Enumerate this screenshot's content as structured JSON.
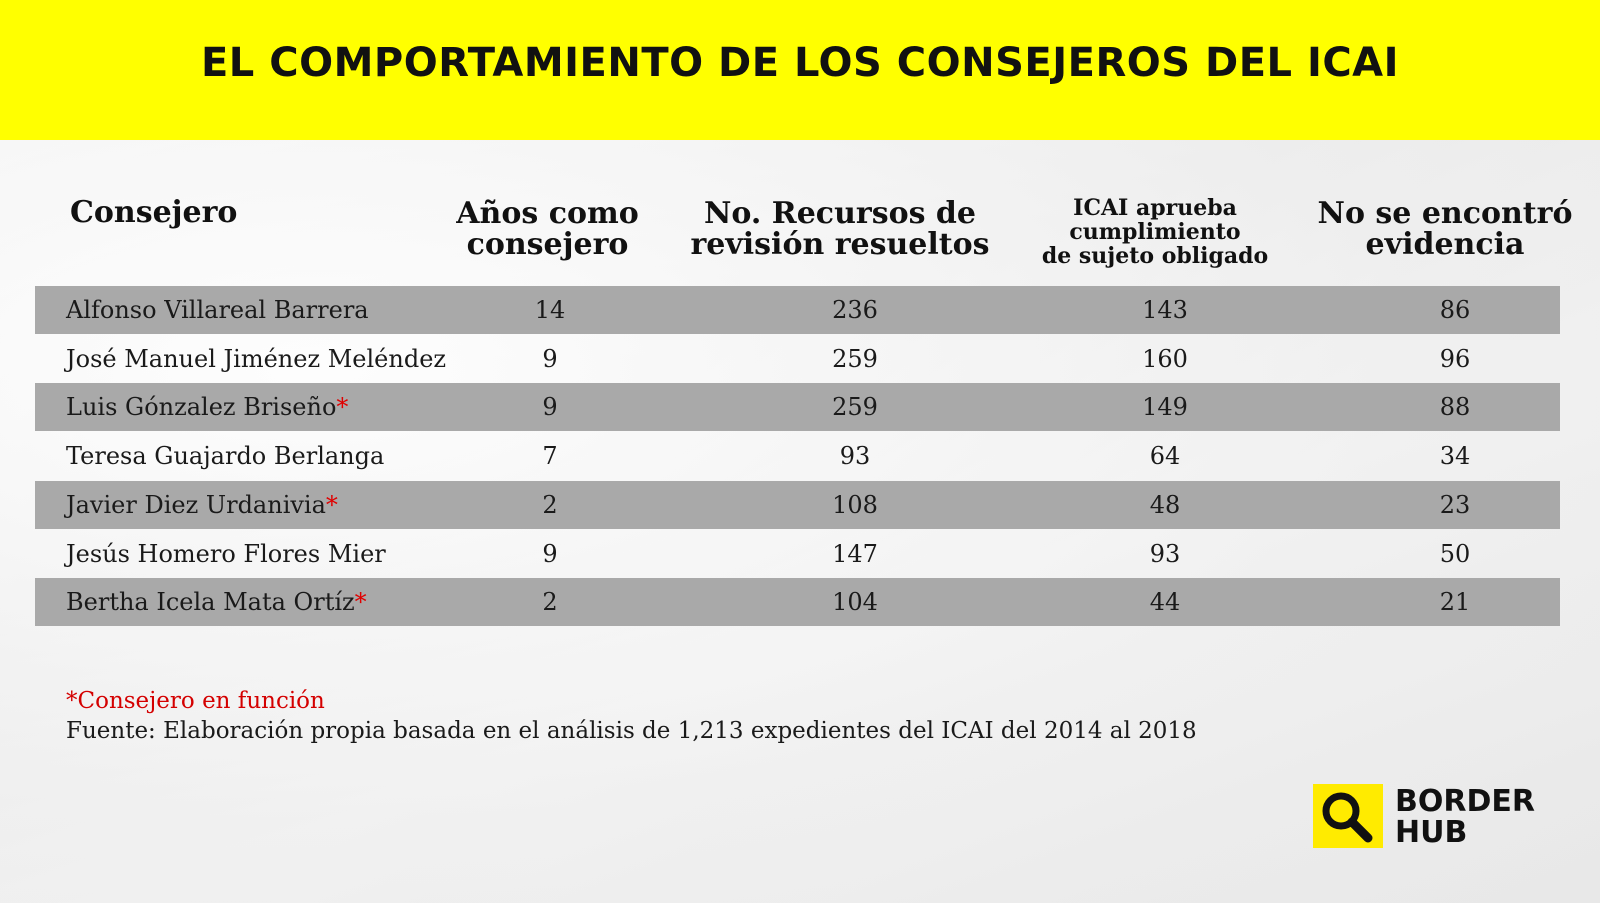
{
  "title": "EL COMPORTAMIENTO DE LOS CONSEJEROS DEL ICAI",
  "colors": {
    "title_bg": "#ffff00",
    "row_shade": "#a9a9a9",
    "asterisk": "#e00000",
    "logo_bg": "#ffeb00"
  },
  "chart_data": {
    "type": "table",
    "columns": [
      {
        "label_lines": [
          "Consejero"
        ]
      },
      {
        "label_lines": [
          "Años como",
          "consejero"
        ]
      },
      {
        "label_lines": [
          "No. Recursos de",
          "revisión resueltos"
        ]
      },
      {
        "label_lines": [
          "ICAI aprueba",
          "cumplimiento",
          "de sujeto obligado"
        ]
      },
      {
        "label_lines": [
          "No se encontró",
          "evidencia"
        ]
      }
    ],
    "rows": [
      {
        "name": "Alfonso Villareal Barrera",
        "star": "",
        "years": "14",
        "recursos": "236",
        "icai": "143",
        "evidencia": "86"
      },
      {
        "name": "José Manuel Jiménez Meléndez",
        "star": "",
        "years": "9",
        "recursos": "259",
        "icai": "160",
        "evidencia": "96"
      },
      {
        "name": "Luis Gónzalez Briseño",
        "star": "*",
        "years": "9",
        "recursos": "259",
        "icai": "149",
        "evidencia": "88"
      },
      {
        "name": "Teresa Guajardo Berlanga",
        "star": "",
        "years": "7",
        "recursos": "93",
        "icai": "64",
        "evidencia": "34"
      },
      {
        "name": "Javier Diez Urdanivia",
        "star": "*",
        "years": "2",
        "recursos": "108",
        "icai": "48",
        "evidencia": "23"
      },
      {
        "name": "Jesús Homero Flores Mier",
        "star": "",
        "years": "9",
        "recursos": "147",
        "icai": "93",
        "evidencia": "50"
      },
      {
        "name": "Bertha Icela Mata Ortíz",
        "star": "*",
        "years": "2",
        "recursos": "104",
        "icai": "44",
        "evidencia": "21"
      }
    ]
  },
  "notes": {
    "legend": "*Consejero en función",
    "source": "Fuente: Elaboración propia basada en el análisis de 1,213 expedientes del ICAI del 2014 al 2018"
  },
  "logo": {
    "line1": "BORDER",
    "line2": "HUB",
    "icon": "magnifier-icon"
  }
}
